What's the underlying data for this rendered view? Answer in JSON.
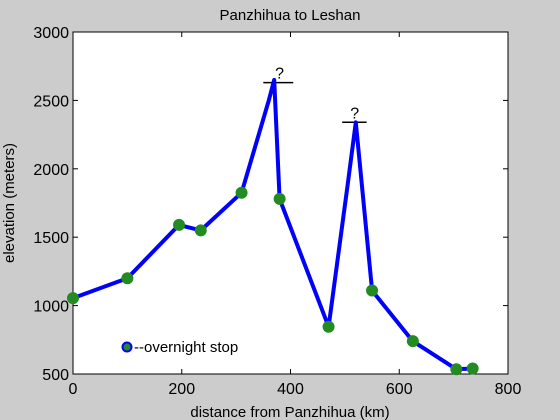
{
  "colors": {
    "figure_bg": "#cccccc",
    "axes_bg": "#ffffff",
    "line": "#0000ff",
    "marker": "#228b22"
  },
  "chart_data": {
    "type": "line",
    "title": "Panzhihua to Leshan",
    "xlabel": "distance from Panzhihua (km)",
    "ylabel": "elevation (meters)",
    "xlim": [
      0,
      800
    ],
    "ylim": [
      500,
      3000
    ],
    "xticks": [
      "0",
      "200",
      "400",
      "600",
      "800"
    ],
    "yticks": [
      "500",
      "1000",
      "1500",
      "2000",
      "2500",
      "3000"
    ],
    "grid": false,
    "series": [
      {
        "x": [
          0,
          100,
          195,
          235,
          310,
          360,
          370,
          380,
          470,
          505,
          520,
          550,
          625,
          705,
          735
        ],
        "y": [
          1055,
          1200,
          1590,
          1550,
          1825,
          2500,
          2650,
          1780,
          845,
          1880,
          2340,
          1110,
          740,
          535,
          540
        ],
        "markers": [
          true,
          true,
          true,
          true,
          true,
          false,
          false,
          true,
          true,
          false,
          false,
          true,
          true,
          true,
          true
        ]
      }
    ],
    "annotations": [
      {
        "text": "?",
        "x": 380,
        "y": 2630,
        "xmin": 350,
        "xmax": 405
      },
      {
        "text": "?",
        "x": 518,
        "y": 2340,
        "xmin": 495,
        "xmax": 540
      }
    ],
    "legend": {
      "text": "--overnight stop",
      "position": "lower-left"
    }
  }
}
